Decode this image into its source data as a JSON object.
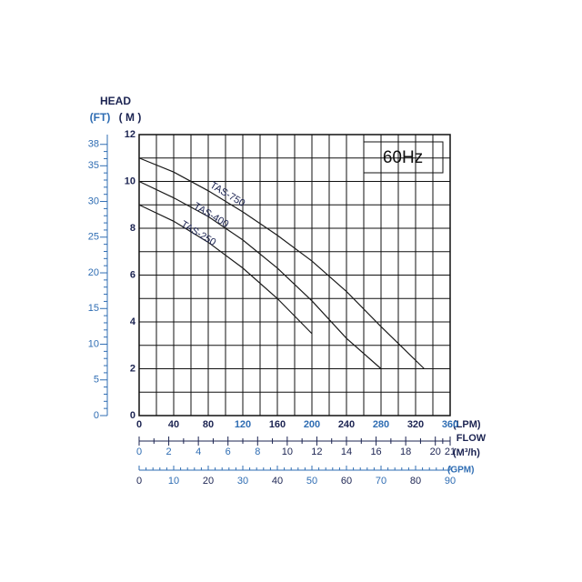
{
  "chart_data": {
    "type": "line",
    "y_title": "HEAD",
    "y2_label": "(FT)",
    "y_label": "( M )",
    "x_label": "(LPM)",
    "x_title": "FLOW",
    "x2_label": "(M³/h)",
    "x3_label": "(GPM)",
    "annotation": "60Hz",
    "grid": true,
    "x": [
      0,
      40,
      80,
      120,
      160,
      200,
      240,
      280,
      330
    ],
    "series": [
      {
        "name": "TAS-750",
        "color": "#1a1a1a",
        "values": [
          11,
          10.4,
          9.6,
          8.7,
          7.7,
          6.6,
          5.3,
          3.8,
          2
        ]
      },
      {
        "name": "TAS-400",
        "color": "#1a1a1a",
        "values": [
          10,
          9.3,
          8.5,
          7.5,
          6.3,
          4.9,
          3.3,
          2,
          null
        ]
      },
      {
        "name": "TAS-250",
        "color": "#1a1a1a",
        "values": [
          9,
          8.3,
          7.4,
          6.3,
          5,
          3.5,
          null,
          null,
          null
        ]
      }
    ],
    "xlim": [
      0,
      360
    ],
    "xticks": [
      0,
      40,
      80,
      120,
      160,
      200,
      240,
      280,
      320,
      360
    ],
    "ylim": [
      0,
      12
    ],
    "yticks": [
      0,
      2,
      4,
      6,
      8,
      10,
      12
    ],
    "y2lim": [
      0,
      39.37
    ],
    "y2ticks": [
      0,
      5,
      10,
      15,
      20,
      25,
      30,
      35,
      38
    ],
    "x2lim": [
      0,
      21
    ],
    "x2ticks": [
      0,
      2,
      4,
      6,
      8,
      10,
      12,
      14,
      16,
      18,
      20,
      21
    ],
    "x3lim": [
      0,
      90
    ],
    "x3ticks": [
      0,
      10,
      20,
      30,
      40,
      50,
      60,
      70,
      80,
      90
    ]
  }
}
